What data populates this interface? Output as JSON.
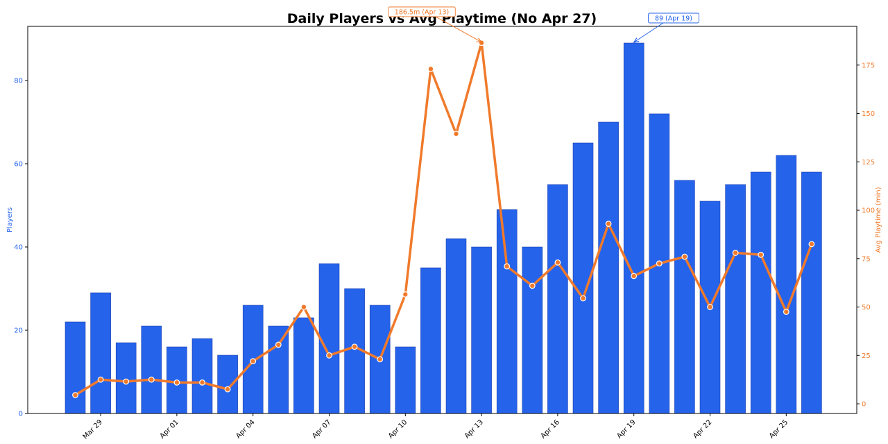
{
  "chart_data": {
    "type": "bar+line",
    "title": "Daily Players vs Avg Playtime (No Apr 27)",
    "left_axis": {
      "label": "Players",
      "range": [
        0,
        93
      ],
      "ticks": [
        0,
        20,
        40,
        60,
        80
      ],
      "color": "#2563eb"
    },
    "right_axis": {
      "label": "Avg Playtime (min)",
      "range": [
        -5,
        195
      ],
      "ticks": [
        0,
        25,
        50,
        75,
        100,
        125,
        150,
        175
      ],
      "color": "#f07a2b"
    },
    "x": [
      "Mar 28",
      "Mar 29",
      "Mar 30",
      "Mar 31",
      "Apr 01",
      "Apr 02",
      "Apr 03",
      "Apr 04",
      "Apr 05",
      "Apr 06",
      "Apr 07",
      "Apr 08",
      "Apr 09",
      "Apr 10",
      "Apr 11",
      "Apr 12",
      "Apr 13",
      "Apr 14",
      "Apr 15",
      "Apr 16",
      "Apr 17",
      "Apr 18",
      "Apr 19",
      "Apr 20",
      "Apr 21",
      "Apr 22",
      "Apr 23",
      "Apr 24",
      "Apr 25",
      "Apr 26"
    ],
    "x_tick_labels": [
      "Mar 29",
      "Apr 01",
      "Apr 04",
      "Apr 07",
      "Apr 10",
      "Apr 13",
      "Apr 16",
      "Apr 19",
      "Apr 22",
      "Apr 25"
    ],
    "x_tick_indices": [
      1,
      4,
      7,
      10,
      13,
      16,
      19,
      22,
      25,
      28
    ],
    "series": [
      {
        "type": "bar",
        "axis": "left",
        "color": "#2563eb",
        "values": [
          22,
          29,
          17,
          21,
          16,
          18,
          14,
          26,
          21,
          23,
          36,
          30,
          26,
          16,
          35,
          42,
          40,
          49,
          40,
          55,
          65,
          70,
          89,
          72,
          56,
          51,
          55,
          58,
          62,
          58
        ]
      },
      {
        "type": "line",
        "axis": "right",
        "color": "#f07a2b",
        "values": [
          4.5,
          12.5,
          11.5,
          12.5,
          11.0,
          11.0,
          7.5,
          22.0,
          30.5,
          50.0,
          25.0,
          29.5,
          23.0,
          56.5,
          173.0,
          139.5,
          186.5,
          71.0,
          61.0,
          73.0,
          54.5,
          93.0,
          66.0,
          72.5,
          76.0,
          50.0,
          78.0,
          77.0,
          47.5,
          82.5
        ]
      }
    ],
    "annotations": [
      {
        "text": "186.5m (Apr 13)",
        "series": 1,
        "index": 16,
        "color": "#f07a2b"
      },
      {
        "text": "89 (Apr 19)",
        "series": 0,
        "index": 22,
        "color": "#2563eb"
      }
    ],
    "grid": false,
    "legend": "none"
  }
}
